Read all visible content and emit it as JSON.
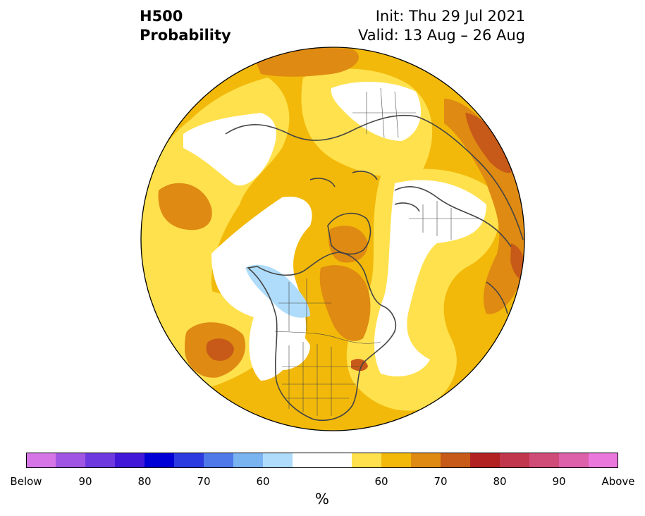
{
  "header": {
    "title_line1": "H500",
    "title_line2": "Probability",
    "init_line": "Init: Thu 29 Jul 2021",
    "valid_line": "Valid: 13 Aug – 26 Aug"
  },
  "colorbar": {
    "unit": "%",
    "colors": [
      "#d676e6",
      "#a056e2",
      "#6e3ae0",
      "#4218d8",
      "#0000d6",
      "#2b3be0",
      "#4f78e8",
      "#7ab4f0",
      "#aedcfa",
      "#ffffff",
      "#ffffff",
      "#ffe14d",
      "#f2b90a",
      "#df8a12",
      "#c75a18",
      "#b22222",
      "#c2364d",
      "#cf4c79",
      "#dc60aa",
      "#ea78dc"
    ],
    "tick_labels": [
      "Below",
      "90",
      "80",
      "70",
      "60",
      "60",
      "70",
      "80",
      "90",
      "Above"
    ]
  },
  "map_colors": {
    "outline": "#000000",
    "coast": "#444444",
    "bg": "#f2b90a"
  }
}
